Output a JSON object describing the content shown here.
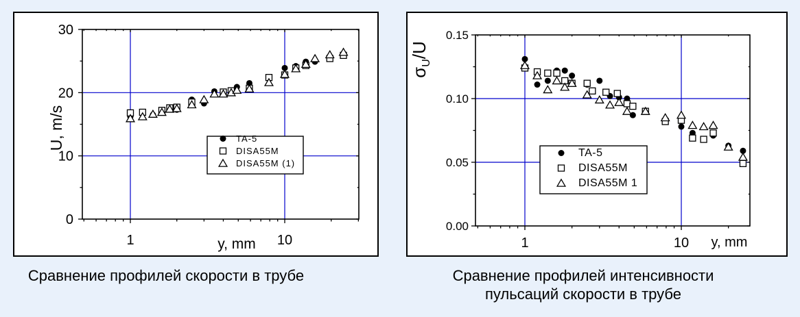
{
  "page": {
    "background_color": "#e9f1fb",
    "panel_background": "#ffffff",
    "frame_color": "#000000"
  },
  "figures": [
    {
      "caption_lines": [
        "Сравнение профилей скорости в трубе"
      ]
    },
    {
      "caption_lines": [
        "Сравнение профилей интенсивности",
        "пульсаций скорости в трубе"
      ]
    }
  ],
  "chart_data": [
    {
      "type": "scatter",
      "title": "",
      "xlabel": "y, mm",
      "ylabel": "U, m/s",
      "xscale": "log",
      "xlim": [
        0.49,
        30.2
      ],
      "ylim": [
        0,
        30
      ],
      "xticks": [
        {
          "v": 1,
          "label": "1"
        },
        {
          "v": 10,
          "label": "10"
        }
      ],
      "yticks": [
        {
          "v": 0,
          "label": "0"
        },
        {
          "v": 10,
          "label": "10"
        },
        {
          "v": 20,
          "label": "20"
        },
        {
          "v": 30,
          "label": "30"
        }
      ],
      "grid_x": [
        1,
        10
      ],
      "grid_y": [
        10,
        20
      ],
      "grid_color": "#0000cc",
      "legend_position": "inside-lower-right",
      "series": [
        {
          "name": "TA-5",
          "marker": "filled-circle",
          "points": [
            [
              1.0,
              16.2
            ],
            [
              1.4,
              16.5
            ],
            [
              2.0,
              17.3
            ],
            [
              2.5,
              18.9
            ],
            [
              3.0,
              18.3
            ],
            [
              3.5,
              20.2
            ],
            [
              4.9,
              20.9
            ],
            [
              5.9,
              21.5
            ],
            [
              10,
              23.9
            ],
            [
              11.8,
              24.2
            ],
            [
              13.7,
              24.9
            ],
            [
              15.7,
              24.9
            ],
            [
              24,
              26.2
            ]
          ]
        },
        {
          "name": "DISA55M",
          "marker": "open-square",
          "points": [
            [
              1.0,
              16.8
            ],
            [
              1.2,
              16.9
            ],
            [
              1.6,
              17.2
            ],
            [
              1.8,
              17.6
            ],
            [
              2.0,
              17.7
            ],
            [
              2.5,
              18.5
            ],
            [
              4.0,
              20.1
            ],
            [
              4.5,
              20.3
            ],
            [
              5.9,
              20.7
            ],
            [
              7.9,
              22.4
            ],
            [
              10,
              22.8
            ],
            [
              11.8,
              23.9
            ],
            [
              13.7,
              24.3
            ],
            [
              19.6,
              25.4
            ],
            [
              24,
              25.9
            ]
          ]
        },
        {
          "name": "DISA55M (1)",
          "marker": "open-triangle",
          "points": [
            [
              1.0,
              15.9
            ],
            [
              1.2,
              16.2
            ],
            [
              1.4,
              16.6
            ],
            [
              1.6,
              16.9
            ],
            [
              1.8,
              17.4
            ],
            [
              2.0,
              17.5
            ],
            [
              2.5,
              18.1
            ],
            [
              3.0,
              18.9
            ],
            [
              3.5,
              19.8
            ],
            [
              4.0,
              19.8
            ],
            [
              4.5,
              20.0
            ],
            [
              4.9,
              20.4
            ],
            [
              5.9,
              20.6
            ],
            [
              7.9,
              21.6
            ],
            [
              10,
              22.9
            ],
            [
              11.8,
              23.8
            ],
            [
              13.7,
              24.5
            ],
            [
              15.7,
              25.4
            ],
            [
              19.6,
              26.0
            ],
            [
              24,
              26.4
            ]
          ]
        }
      ]
    },
    {
      "type": "scatter",
      "title": "",
      "xlabel": "y, mm",
      "ylabel": "σ_U/U",
      "xscale": "log",
      "xlim": [
        0.483,
        27.5
      ],
      "ylim": [
        0,
        0.15
      ],
      "xticks": [
        {
          "v": 1,
          "label": "1"
        },
        {
          "v": 10,
          "label": "10"
        }
      ],
      "yticks": [
        {
          "v": 0,
          "label": "0.00"
        },
        {
          "v": 0.05,
          "label": "0.05"
        },
        {
          "v": 0.1,
          "label": "0.10"
        },
        {
          "v": 0.15,
          "label": "0.15"
        }
      ],
      "grid_x": [
        1,
        10
      ],
      "grid_y": [
        0.05,
        0.1
      ],
      "grid_color": "#0000cc",
      "legend_position": "inside-lower-left",
      "series": [
        {
          "name": "TA-5",
          "marker": "filled-circle",
          "points": [
            [
              1.0,
              0.131
            ],
            [
              1.2,
              0.111
            ],
            [
              1.4,
              0.114
            ],
            [
              1.6,
              0.122
            ],
            [
              1.8,
              0.122
            ],
            [
              2.0,
              0.118
            ],
            [
              2.5,
              0.111
            ],
            [
              3.0,
              0.114
            ],
            [
              3.5,
              0.102
            ],
            [
              4.0,
              0.101
            ],
            [
              4.5,
              0.1
            ],
            [
              4.9,
              0.087
            ],
            [
              10,
              0.078
            ],
            [
              11.8,
              0.073
            ],
            [
              16,
              0.071
            ],
            [
              20,
              0.063
            ],
            [
              24.8,
              0.059
            ]
          ]
        },
        {
          "name": "DISA55M",
          "marker": "open-square",
          "points": [
            [
              1.0,
              0.124
            ],
            [
              1.2,
              0.121
            ],
            [
              1.4,
              0.12
            ],
            [
              1.6,
              0.12
            ],
            [
              1.8,
              0.114
            ],
            [
              2.0,
              0.112
            ],
            [
              2.5,
              0.112
            ],
            [
              2.7,
              0.106
            ],
            [
              3.3,
              0.105
            ],
            [
              3.9,
              0.104
            ],
            [
              4.5,
              0.096
            ],
            [
              4.9,
              0.094
            ],
            [
              5.9,
              0.09
            ],
            [
              7.9,
              0.082
            ],
            [
              10,
              0.083
            ],
            [
              11.8,
              0.069
            ],
            [
              13.9,
              0.068
            ],
            [
              16,
              0.073
            ],
            [
              24.8,
              0.049
            ]
          ]
        },
        {
          "name": "DISA55M 1",
          "marker": "open-triangle",
          "points": [
            [
              1.0,
              0.126
            ],
            [
              1.2,
              0.118
            ],
            [
              1.4,
              0.107
            ],
            [
              1.6,
              0.114
            ],
            [
              1.8,
              0.109
            ],
            [
              2.0,
              0.112
            ],
            [
              2.5,
              0.103
            ],
            [
              3.0,
              0.099
            ],
            [
              3.5,
              0.095
            ],
            [
              4.0,
              0.097
            ],
            [
              4.5,
              0.09
            ],
            [
              5.9,
              0.09
            ],
            [
              7.9,
              0.085
            ],
            [
              10,
              0.087
            ],
            [
              11.8,
              0.079
            ],
            [
              13.9,
              0.078
            ],
            [
              16,
              0.079
            ],
            [
              20,
              0.062
            ],
            [
              24.8,
              0.054
            ]
          ]
        }
      ]
    }
  ]
}
